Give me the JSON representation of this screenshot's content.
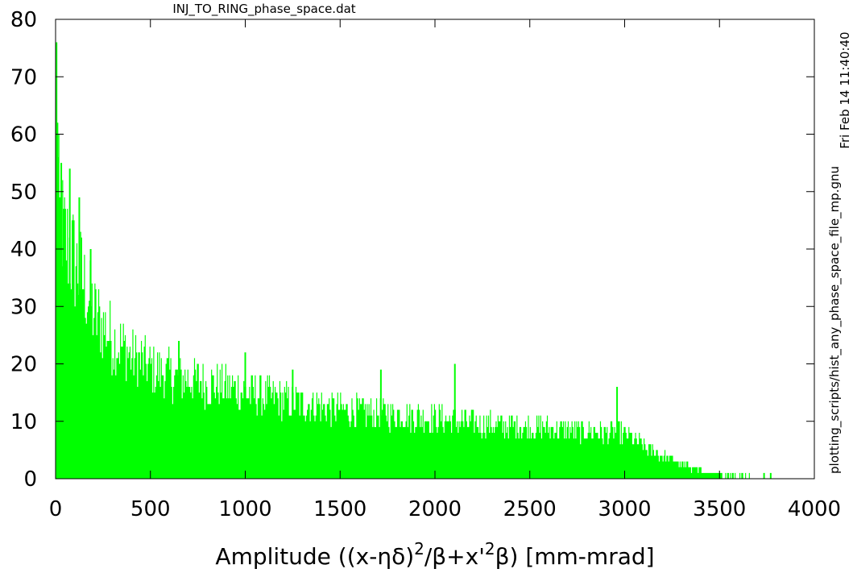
{
  "page": {
    "file_title": "INJ_TO_RING_phase_space.dat",
    "timestamp": "Fri Feb 14 11:40:40",
    "script_name": "plotting_scripts/hist_any_phase_space_file_mp.gnu"
  },
  "colors": {
    "bars": "#00ff00",
    "axis": "#000000",
    "background": "#ffffff"
  },
  "chart_data": {
    "type": "bar",
    "xlabel": "Amplitude ((x-ηδ)²/β+x'²β) [mm-mrad]",
    "xlabel_parts": {
      "main": "Amplitude ((x-ηδ)",
      "sup1": "2",
      "mid": "/β+x'",
      "sup2": "2",
      "end": "β) [mm-mrad]"
    },
    "ylabel": "",
    "xlim": [
      0,
      4000
    ],
    "ylim": [
      0,
      80
    ],
    "x_ticks": [
      0,
      500,
      1000,
      1500,
      2000,
      2500,
      3000,
      3500,
      4000
    ],
    "y_ticks": [
      0,
      10,
      20,
      30,
      40,
      50,
      60,
      70,
      80
    ],
    "x_tick_labels": [
      "0",
      "500",
      "1000",
      "1500",
      "2000",
      "2500",
      "3000",
      "3500",
      "4000"
    ],
    "y_tick_labels": [
      "0",
      "10",
      "20",
      "30",
      "40",
      "50",
      "60",
      "70",
      "80"
    ],
    "grid": false,
    "bin_width": 5,
    "envelope": {
      "x": [
        0,
        5,
        20,
        50,
        100,
        150,
        200,
        300,
        400,
        500,
        600,
        700,
        800,
        900,
        1000,
        1200,
        1400,
        1600,
        1800,
        2000,
        2200,
        2400,
        2600,
        2800,
        3000,
        3100,
        3200,
        3300,
        3400,
        3500,
        3600,
        3650,
        3800,
        4000
      ],
      "y": [
        76,
        62,
        47,
        43,
        39,
        35,
        30,
        25,
        22,
        20,
        18.5,
        18,
        17,
        16.5,
        15.5,
        14,
        13,
        12,
        11.5,
        11,
        10,
        9.5,
        9,
        8.5,
        8,
        6,
        4,
        2.5,
        1.5,
        0.7,
        0.3,
        0.1,
        0,
        0
      ]
    },
    "peaks": [
      {
        "x": 5,
        "y": 76
      },
      {
        "x": 10,
        "y": 62
      },
      {
        "x": 30,
        "y": 55
      },
      {
        "x": 75,
        "y": 54
      },
      {
        "x": 125,
        "y": 49
      },
      {
        "x": 185,
        "y": 40
      },
      {
        "x": 650,
        "y": 24
      },
      {
        "x": 1000,
        "y": 22
      },
      {
        "x": 1250,
        "y": 19
      },
      {
        "x": 1715,
        "y": 19
      },
      {
        "x": 2105,
        "y": 20
      },
      {
        "x": 2960,
        "y": 16
      },
      {
        "x": 3735,
        "y": 1
      },
      {
        "x": 3770,
        "y": 1
      }
    ]
  }
}
